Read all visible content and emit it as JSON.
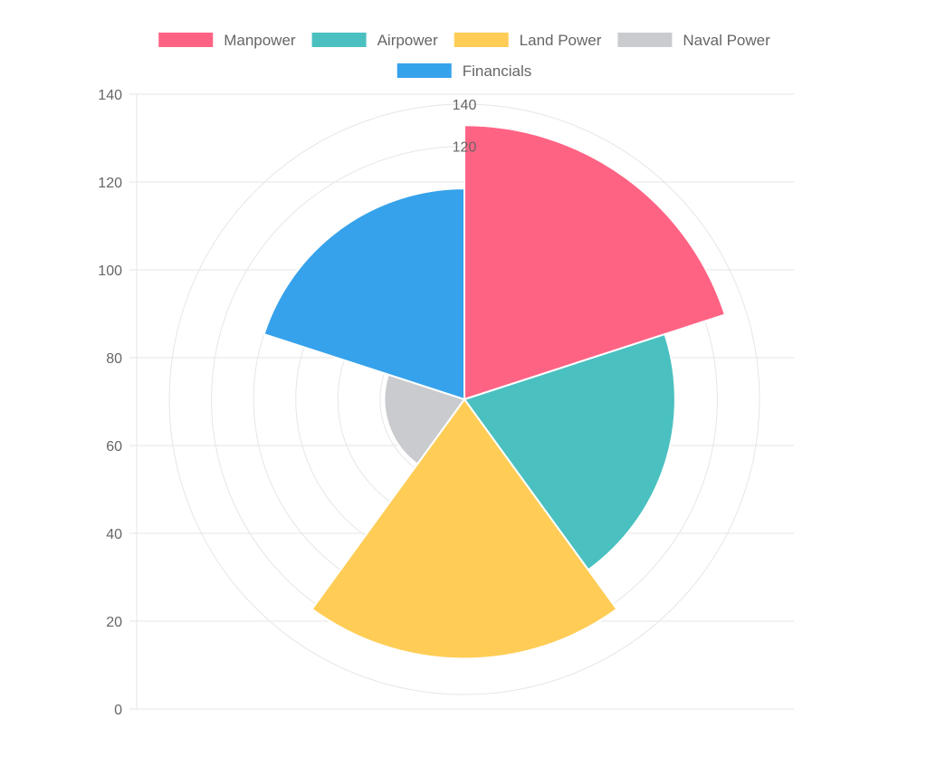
{
  "chart_data": {
    "type": "polarArea",
    "labels": [
      "Manpower",
      "Airpower",
      "Land Power",
      "Naval Power",
      "Financials"
    ],
    "values": [
      130,
      100,
      123,
      38,
      100
    ],
    "colors": [
      "#ff6384",
      "#4bc0c0",
      "#ffcd56",
      "#c9cbcf",
      "#36a2eb"
    ],
    "legend_position": "top",
    "radial_axis": {
      "min": 0,
      "max": 140,
      "step": 20,
      "visible_tick_labels": [
        "140",
        "120"
      ]
    },
    "y_axis": {
      "min": 0,
      "max": 140,
      "step": 20,
      "ticks": [
        "0",
        "20",
        "40",
        "60",
        "80",
        "100",
        "120",
        "140"
      ]
    },
    "grid": true
  }
}
